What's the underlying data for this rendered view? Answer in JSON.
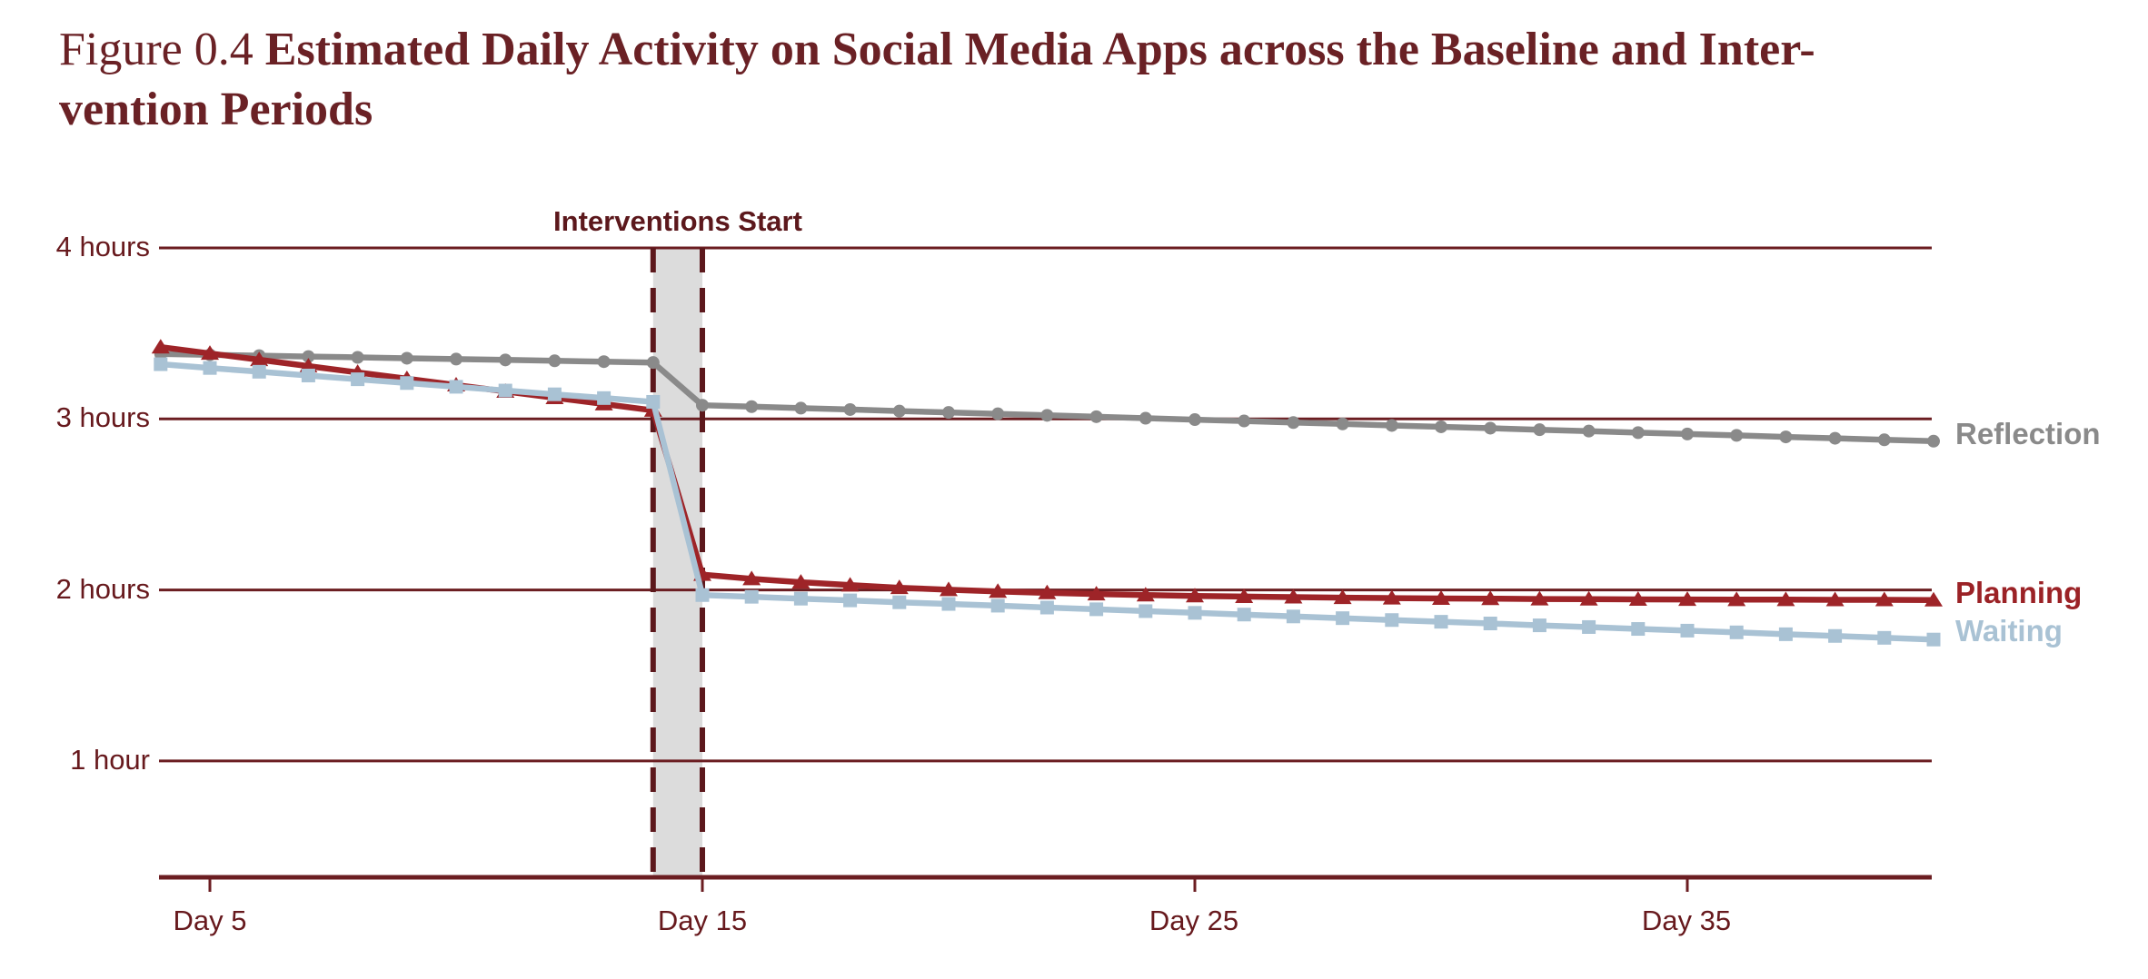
{
  "title": {
    "figure_label": "Figure 0.4",
    "line1": "Estimated Daily Activity on Social Media Apps across the Baseline and Inter-",
    "line2": "vention Periods",
    "full_title": "Estimated Daily Activity on Social Media Apps across the Baseline and Intervention Periods"
  },
  "annotation": {
    "label": "Interventions Start"
  },
  "colors": {
    "title_text": "#6a2125",
    "axis_text": "#67191d",
    "gridline": "#6b1d21",
    "axis_line": "#6b1d21",
    "dashed_line": "#5c181c",
    "intervention_band": "#dcdcdc",
    "reflection": "#8a8a8a",
    "planning": "#9e2428",
    "waiting": "#a9c2d4",
    "background": "#ffffff"
  },
  "chart_data": {
    "type": "line",
    "title": "Estimated Daily Activity on Social Media Apps across the Baseline and Intervention Periods",
    "xlabel": "",
    "ylabel": "",
    "x_unit": "day",
    "y_unit": "hours",
    "ylim": [
      0.3,
      4
    ],
    "xlim": [
      4,
      40
    ],
    "grid": "horizontal",
    "legend_position": "right-of-lines",
    "x_ticks": [
      {
        "label": "Day 5",
        "day": 5
      },
      {
        "label": "Day 15",
        "day": 15
      },
      {
        "label": "Day 25",
        "day": 25
      },
      {
        "label": "Day 35",
        "day": 35
      }
    ],
    "y_ticks": [
      {
        "label": "4 hours",
        "value": 4
      },
      {
        "label": "3 hours",
        "value": 3
      },
      {
        "label": "2 hours",
        "value": 2
      },
      {
        "label": "1 hour",
        "value": 1
      }
    ],
    "intervention_band": {
      "from_day": 14,
      "to_day": 15,
      "label": "Interventions Start",
      "style": "gray band with dashed maroon borders"
    },
    "days": [
      4,
      5,
      6,
      7,
      8,
      9,
      10,
      11,
      12,
      13,
      14,
      15,
      16,
      17,
      18,
      19,
      20,
      21,
      22,
      23,
      24,
      25,
      26,
      27,
      28,
      29,
      30,
      31,
      32,
      33,
      34,
      35,
      36,
      37,
      38,
      39,
      40
    ],
    "series": [
      {
        "name": "Reflection",
        "color": "#8a8a8a",
        "marker": "circle",
        "values": [
          3.38,
          3.375,
          3.37,
          3.365,
          3.36,
          3.355,
          3.35,
          3.345,
          3.34,
          3.335,
          3.33,
          3.08,
          3.072,
          3.063,
          3.055,
          3.046,
          3.038,
          3.03,
          3.021,
          3.013,
          3.004,
          2.996,
          2.988,
          2.979,
          2.971,
          2.962,
          2.954,
          2.946,
          2.937,
          2.929,
          2.92,
          2.912,
          2.904,
          2.895,
          2.887,
          2.878,
          2.87
        ]
      },
      {
        "name": "Planning",
        "color": "#9e2428",
        "marker": "triangle",
        "values": [
          3.42,
          3.383,
          3.346,
          3.309,
          3.272,
          3.235,
          3.198,
          3.161,
          3.124,
          3.087,
          3.05,
          2.09,
          2.065,
          2.045,
          2.028,
          2.013,
          2.001,
          1.991,
          1.983,
          1.976,
          1.97,
          1.965,
          1.961,
          1.958,
          1.955,
          1.952,
          1.95,
          1.949,
          1.947,
          1.946,
          1.945,
          1.944,
          1.943,
          1.943,
          1.942,
          1.942,
          1.941
        ]
      },
      {
        "name": "Waiting",
        "color": "#a9c2d4",
        "marker": "square",
        "values": [
          3.32,
          3.298,
          3.276,
          3.254,
          3.232,
          3.21,
          3.188,
          3.166,
          3.144,
          3.122,
          3.1,
          1.97,
          1.96,
          1.949,
          1.939,
          1.928,
          1.918,
          1.908,
          1.897,
          1.887,
          1.876,
          1.866,
          1.856,
          1.845,
          1.835,
          1.824,
          1.814,
          1.804,
          1.793,
          1.783,
          1.772,
          1.762,
          1.752,
          1.741,
          1.731,
          1.72,
          1.71
        ]
      }
    ]
  }
}
